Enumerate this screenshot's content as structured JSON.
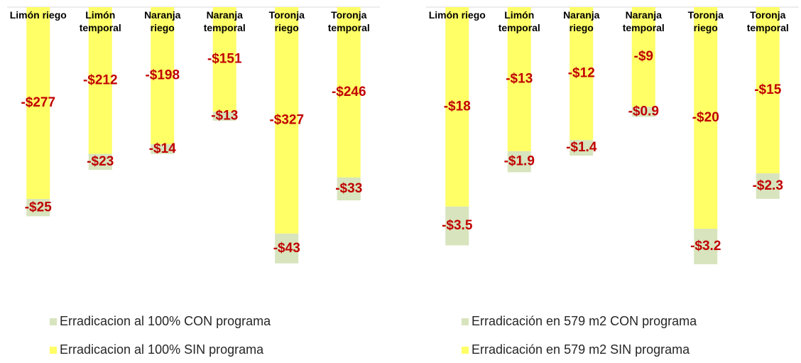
{
  "chart_data": [
    {
      "type": "bar",
      "stacked": true,
      "categories": [
        "Limón riego",
        "Limón temporal",
        "Naranja riego",
        "Naranja temporal",
        "Toronja riego",
        "Toronja temporal"
      ],
      "series": [
        {
          "name": "Erradicacion al 100% CON programa",
          "color": "#d7e4bd",
          "values": [
            -25,
            -23,
            -14,
            -13,
            -43,
            -33
          ],
          "value_labels": [
            "-$25",
            "-$23",
            "-$14",
            "-$13",
            "-$43",
            "-$33"
          ]
        },
        {
          "name": "Erradicacion al 100% SIN programa",
          "color": "#ffff66",
          "values": [
            -277,
            -212,
            -198,
            -151,
            -327,
            -246
          ],
          "value_labels": [
            "-$277",
            "-$212",
            "-$198",
            "-$151",
            "-$327",
            "-$246"
          ]
        }
      ],
      "ylim": [
        -400,
        0
      ]
    },
    {
      "type": "bar",
      "stacked": true,
      "categories": [
        "Limón riego",
        "Limón temporal",
        "Naranja riego",
        "Naranja temporal",
        "Toronja riego",
        "Toronja temporal"
      ],
      "series": [
        {
          "name": "Erradicación en 579 m2 CON programa",
          "color": "#d7e4bd",
          "values": [
            -3.5,
            -1.9,
            -1.4,
            -0.9,
            -3.2,
            -2.3
          ],
          "value_labels": [
            "-$3.5",
            "-$1.9",
            "-$1.4",
            "-$0.9",
            "-$3.2",
            "-$2.3"
          ]
        },
        {
          "name": "Erradicación en 579 m2 SIN programa",
          "color": "#ffff66",
          "values": [
            -18,
            -13,
            -12,
            -9,
            -20,
            -15
          ],
          "value_labels": [
            "-$18",
            "-$13",
            "-$12",
            "-$9",
            "-$20",
            "-$15"
          ]
        }
      ],
      "ylim": [
        -25,
        0
      ]
    }
  ]
}
